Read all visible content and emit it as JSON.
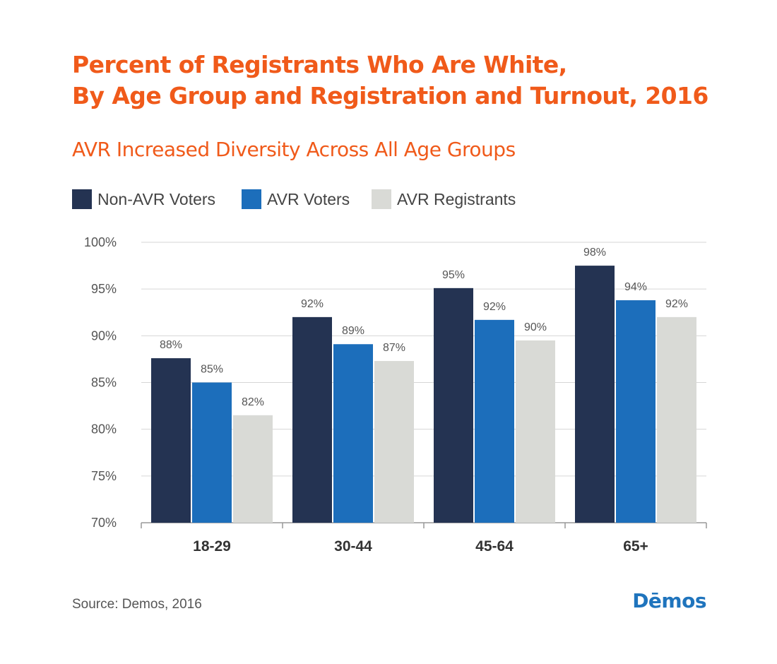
{
  "header": {
    "title_line1": "Percent of Registrants Who Are White,",
    "title_line2": "By Age Group and Registration and Turnout, 2016",
    "subtitle": "AVR Increased Diversity Across All Age Groups"
  },
  "footer": {
    "source": "Source: Demos, 2016",
    "logo": "Dēmos"
  },
  "chart_data": {
    "type": "bar",
    "title": "Percent of Registrants Who Are White, By Age Group and Registration and Turnout, 2016",
    "subtitle": "AVR Increased Diversity Across All Age Groups",
    "categories": [
      "18-29",
      "30-44",
      "45-64",
      "65+"
    ],
    "series": [
      {
        "name": "Non-AVR Voters",
        "color": "#243352",
        "values": [
          87.6,
          92.0,
          95.1,
          97.5
        ],
        "labels": [
          "88%",
          "92%",
          "95%",
          "98%"
        ]
      },
      {
        "name": "AVR Voters",
        "color": "#1c6ebb",
        "values": [
          85.0,
          89.1,
          91.7,
          93.8
        ],
        "labels": [
          "85%",
          "89%",
          "92%",
          "94%"
        ]
      },
      {
        "name": "AVR Registrants",
        "color": "#d9dad6",
        "values": [
          81.5,
          87.3,
          89.5,
          92.0
        ],
        "labels": [
          "82%",
          "87%",
          "90%",
          "92%"
        ]
      }
    ],
    "xlabel": "",
    "ylabel": "",
    "ylim": [
      70,
      100
    ],
    "yticks": [
      100,
      95,
      90,
      85,
      80,
      75,
      70
    ],
    "ytick_labels": [
      "100%",
      "95%",
      "90%",
      "85%",
      "80%",
      "75%",
      "70%"
    ],
    "grid": true,
    "legend": "top-left"
  }
}
